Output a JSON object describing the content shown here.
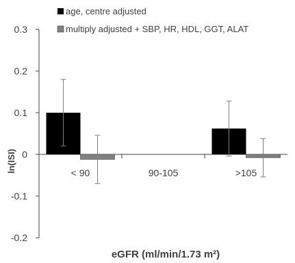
{
  "chart_data": {
    "type": "bar",
    "title": "",
    "xlabel": "eGFR (ml/min/1.73 m²)",
    "ylabel": "ln(ISI)",
    "categories": [
      "< 90",
      "90-105",
      ">105"
    ],
    "ylim": [
      -0.2,
      0.3
    ],
    "yticks": [
      "0.3",
      "0.2",
      "0.1",
      "0",
      "-0.1",
      "-0.2"
    ],
    "ytick_values": [
      0.3,
      0.2,
      0.1,
      0,
      -0.1,
      -0.2
    ],
    "grid": false,
    "legend_position": "top",
    "series": [
      {
        "name": "age, centre adjusted",
        "color": "#000000",
        "values": [
          0.1,
          0,
          0.062
        ],
        "err_low": [
          0.02,
          0,
          -0.004
        ],
        "err_high": [
          0.18,
          0,
          0.128
        ]
      },
      {
        "name": "multiply adjusted + SBP, HR, HDL, GGT, ALAT",
        "color": "#808080",
        "values": [
          -0.012,
          0,
          -0.008
        ],
        "err_low": [
          -0.07,
          0,
          -0.054
        ],
        "err_high": [
          0.046,
          0,
          0.038
        ]
      }
    ]
  }
}
